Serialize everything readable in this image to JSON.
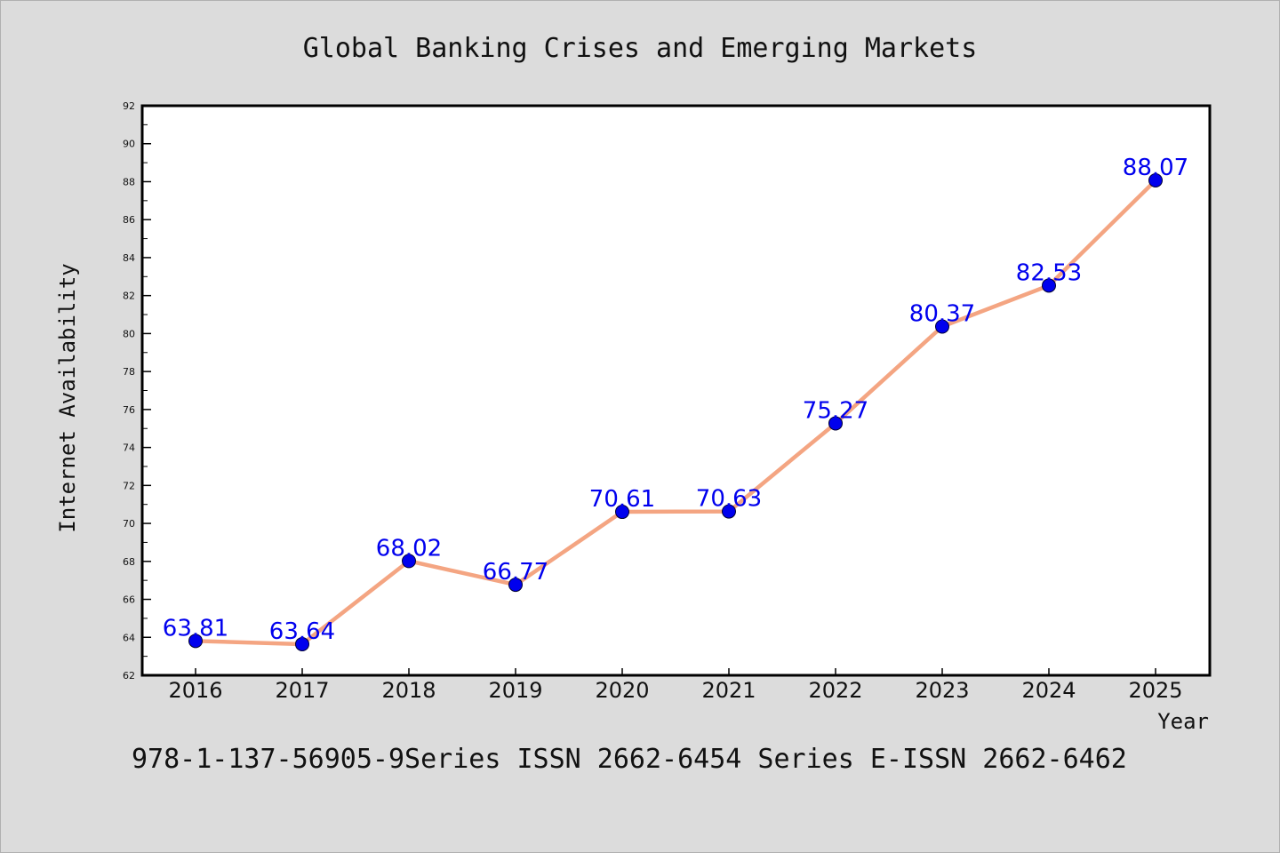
{
  "chart_data": {
    "type": "line",
    "title": "Global Banking Crises and Emerging Markets",
    "xlabel": "Year",
    "ylabel": "Internet Availability",
    "categories": [
      "2016",
      "2017",
      "2018",
      "2019",
      "2020",
      "2021",
      "2022",
      "2023",
      "2024",
      "2025"
    ],
    "series": [
      {
        "values": [
          63.81,
          63.64,
          68.02,
          66.77,
          70.61,
          70.63,
          75.27,
          80.37,
          82.53,
          88.07
        ],
        "labels": [
          "63.81",
          "63.64",
          "68.02",
          "66.77",
          "70.61",
          "70.63",
          "75.27",
          "80.37",
          "82.53",
          "88.07"
        ],
        "line_color": "#f4a582",
        "marker_color": "#0000ee",
        "label_color": "#0000ee"
      }
    ],
    "ylim": [
      62,
      92
    ],
    "yticks": [
      "62",
      "64",
      "66",
      "68",
      "70",
      "72",
      "74",
      "76",
      "78",
      "80",
      "82",
      "84",
      "86",
      "88",
      "90",
      "92"
    ],
    "grid": false,
    "legend": "none"
  },
  "footer": "978-1-137-56905-9Series ISSN 2662-6454 Series E-ISSN 2662-6462",
  "colors": {
    "background": "#dcdcdc",
    "plot_background": "#ffffff",
    "axis": "#000000"
  }
}
